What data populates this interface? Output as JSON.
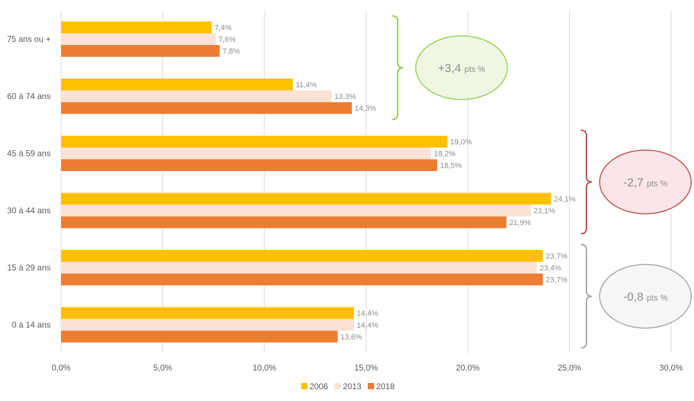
{
  "chart_data": {
    "type": "bar",
    "orientation": "horizontal",
    "categories": [
      "75 ans ou +",
      "60 à 74 ans",
      "45 à 59 ans",
      "30 à 44 ans",
      "15 à 29 ans",
      "0 à 14 ans"
    ],
    "series": [
      {
        "name": "2006",
        "color": "#FFC000",
        "values": [
          7.4,
          11.4,
          19.0,
          24.1,
          23.7,
          14.4
        ],
        "labels": [
          "7,4%",
          "11,4%",
          "19,0%",
          "24,1%",
          "23,7%",
          "14,4%"
        ]
      },
      {
        "name": "2013",
        "color": "#FBE2D5",
        "values": [
          7.6,
          13.3,
          18.2,
          23.1,
          23.4,
          14.4
        ],
        "labels": [
          "7,6%",
          "13,3%",
          "18,2%",
          "23,1%",
          "23,4%",
          "14,4%"
        ]
      },
      {
        "name": "2018",
        "color": "#ED7D31",
        "values": [
          7.8,
          14.3,
          18.5,
          21.9,
          23.7,
          13.6
        ],
        "labels": [
          "7,8%",
          "14,3%",
          "18,5%",
          "21,9%",
          "23,7%",
          "13,6%"
        ]
      }
    ],
    "xlim": [
      0,
      30
    ],
    "ticks": [
      0,
      5,
      10,
      15,
      20,
      25,
      30
    ],
    "tick_labels": [
      "0,0%",
      "5,0%",
      "10,0%",
      "15,0%",
      "20,0%",
      "25,0%",
      "30,0%"
    ],
    "grid": "vertical",
    "legend_position": "bottom",
    "annotations": [
      {
        "main": "+3,4",
        "suffix": "pts %",
        "border": "#92D050",
        "fill": "#EFF7E4",
        "categories": [
          "75 ans ou +",
          "60 à 74 ans"
        ]
      },
      {
        "main": "-2,7",
        "suffix": "pts %",
        "border": "#C0504D",
        "fill": "#FBE5E8",
        "categories": [
          "45 à 59 ans",
          "30 à 44 ans"
        ]
      },
      {
        "main": "-0,8",
        "suffix": "pts %",
        "border": "#A6A6A6",
        "fill": "#F7F7F7",
        "categories": [
          "15 à 29 ans",
          "0 à 14 ans"
        ]
      }
    ]
  }
}
